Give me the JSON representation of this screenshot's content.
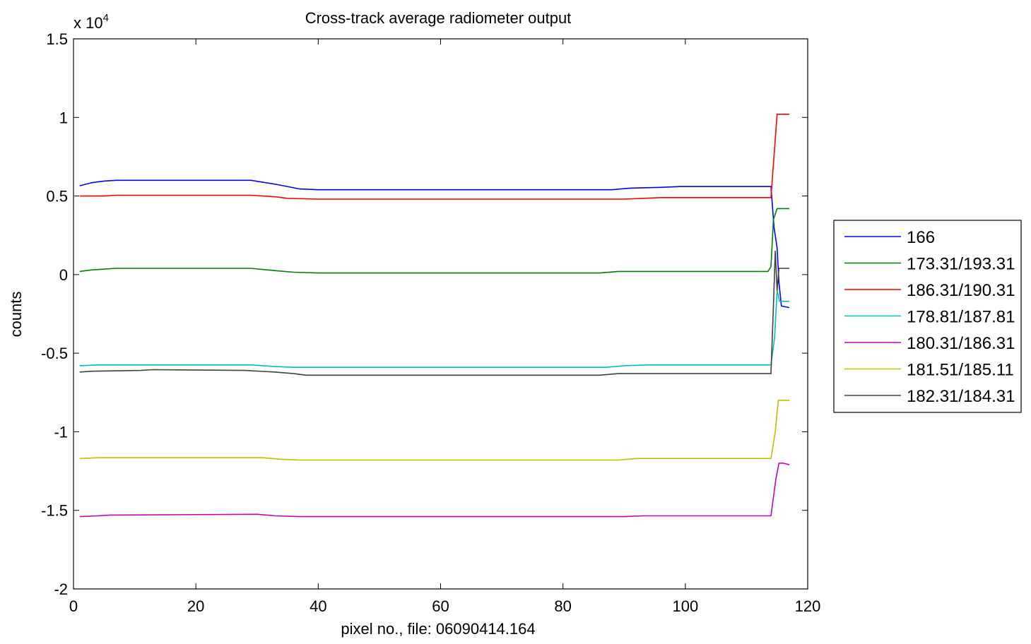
{
  "chart_data": {
    "type": "line",
    "title": "Cross-track average radiometer output",
    "xlabel": "pixel no., file: 06090414.164",
    "ylabel": "counts",
    "exponent_label": {
      "base": "x 10",
      "power": "4"
    },
    "xlim": [
      0,
      120
    ],
    "ylim": [
      -2,
      1.5
    ],
    "x_ticks": [
      0,
      20,
      40,
      60,
      80,
      100,
      120
    ],
    "x_tick_labels": [
      "0",
      "20",
      "40",
      "60",
      "80",
      "100",
      "120"
    ],
    "y_ticks": [
      1.5,
      1,
      0.5,
      0,
      -0.5,
      -1,
      -1.5,
      -2
    ],
    "y_tick_labels": [
      "1.5",
      "1",
      "0.5",
      "0",
      "-0.5",
      "-1",
      "-1.5",
      "-2"
    ],
    "grid": false,
    "legend_position": "right",
    "series": [
      {
        "name": "166",
        "color": "#0000ff",
        "points": [
          [
            1,
            0.565
          ],
          [
            3,
            0.585
          ],
          [
            5,
            0.595
          ],
          [
            7,
            0.6
          ],
          [
            29,
            0.6
          ],
          [
            33,
            0.575
          ],
          [
            37,
            0.545
          ],
          [
            40,
            0.54
          ],
          [
            88,
            0.54
          ],
          [
            91,
            0.55
          ],
          [
            96,
            0.555
          ],
          [
            99,
            0.56
          ],
          [
            114,
            0.56
          ],
          [
            114.5,
            0.3
          ],
          [
            115,
            0.17
          ],
          [
            115.3,
            -0.05
          ],
          [
            115.7,
            -0.2
          ],
          [
            117,
            -0.21
          ]
        ]
      },
      {
        "name": "173.31/193.31",
        "color": "#008000",
        "points": [
          [
            1,
            0.02
          ],
          [
            3,
            0.03
          ],
          [
            7,
            0.04
          ],
          [
            29,
            0.04
          ],
          [
            33,
            0.025
          ],
          [
            36,
            0.015
          ],
          [
            40,
            0.01
          ],
          [
            86,
            0.01
          ],
          [
            89,
            0.02
          ],
          [
            113.5,
            0.02
          ],
          [
            114,
            0.05
          ],
          [
            114.4,
            0.35
          ],
          [
            115,
            0.42
          ],
          [
            117,
            0.42
          ]
        ]
      },
      {
        "name": "186.31/190.31",
        "color": "#ff0000",
        "points": [
          [
            1,
            0.5
          ],
          [
            5,
            0.5
          ],
          [
            7,
            0.505
          ],
          [
            29,
            0.505
          ],
          [
            33,
            0.495
          ],
          [
            35,
            0.485
          ],
          [
            40,
            0.48
          ],
          [
            90,
            0.48
          ],
          [
            93,
            0.485
          ],
          [
            96,
            0.49
          ],
          [
            114,
            0.49
          ],
          [
            115,
            1.02
          ],
          [
            117,
            1.02
          ]
        ]
      },
      {
        "name": "178.81/187.81",
        "color": "#00bfbf",
        "points": [
          [
            1,
            -0.58
          ],
          [
            4,
            -0.575
          ],
          [
            29,
            -0.575
          ],
          [
            33,
            -0.585
          ],
          [
            36,
            -0.59
          ],
          [
            40,
            -0.59
          ],
          [
            87,
            -0.59
          ],
          [
            90,
            -0.58
          ],
          [
            94,
            -0.575
          ],
          [
            114,
            -0.575
          ],
          [
            114.6,
            -0.4
          ],
          [
            115,
            -0.1
          ],
          [
            115.4,
            -0.17
          ],
          [
            117,
            -0.17
          ]
        ]
      },
      {
        "name": "180.31/186.31",
        "color": "#bf00bf",
        "points": [
          [
            1,
            -1.54
          ],
          [
            4,
            -1.535
          ],
          [
            6,
            -1.53
          ],
          [
            30,
            -1.525
          ],
          [
            33,
            -1.535
          ],
          [
            37,
            -1.54
          ],
          [
            90,
            -1.54
          ],
          [
            93,
            -1.535
          ],
          [
            114,
            -1.535
          ],
          [
            114.8,
            -1.3
          ],
          [
            115.3,
            -1.2
          ],
          [
            116,
            -1.2
          ],
          [
            117,
            -1.21
          ]
        ]
      },
      {
        "name": "181.51/185.11",
        "color": "#bfbf00",
        "points": [
          [
            1,
            -1.17
          ],
          [
            4,
            -1.165
          ],
          [
            31,
            -1.165
          ],
          [
            34,
            -1.175
          ],
          [
            37,
            -1.18
          ],
          [
            89,
            -1.18
          ],
          [
            92,
            -1.17
          ],
          [
            114,
            -1.17
          ],
          [
            114.7,
            -1.0
          ],
          [
            115.2,
            -0.8
          ],
          [
            117,
            -0.8
          ]
        ]
      },
      {
        "name": "182.31/184.31",
        "color": "#404040",
        "points": [
          [
            1,
            -0.62
          ],
          [
            3,
            -0.615
          ],
          [
            11,
            -0.61
          ],
          [
            13,
            -0.605
          ],
          [
            28,
            -0.61
          ],
          [
            33,
            -0.62
          ],
          [
            36,
            -0.63
          ],
          [
            38,
            -0.64
          ],
          [
            86,
            -0.64
          ],
          [
            89,
            -0.63
          ],
          [
            114,
            -0.63
          ],
          [
            114.4,
            -0.2
          ],
          [
            114.7,
            0.15
          ],
          [
            115,
            -0.1
          ],
          [
            115.3,
            0.04
          ],
          [
            117,
            0.04
          ]
        ]
      }
    ]
  }
}
